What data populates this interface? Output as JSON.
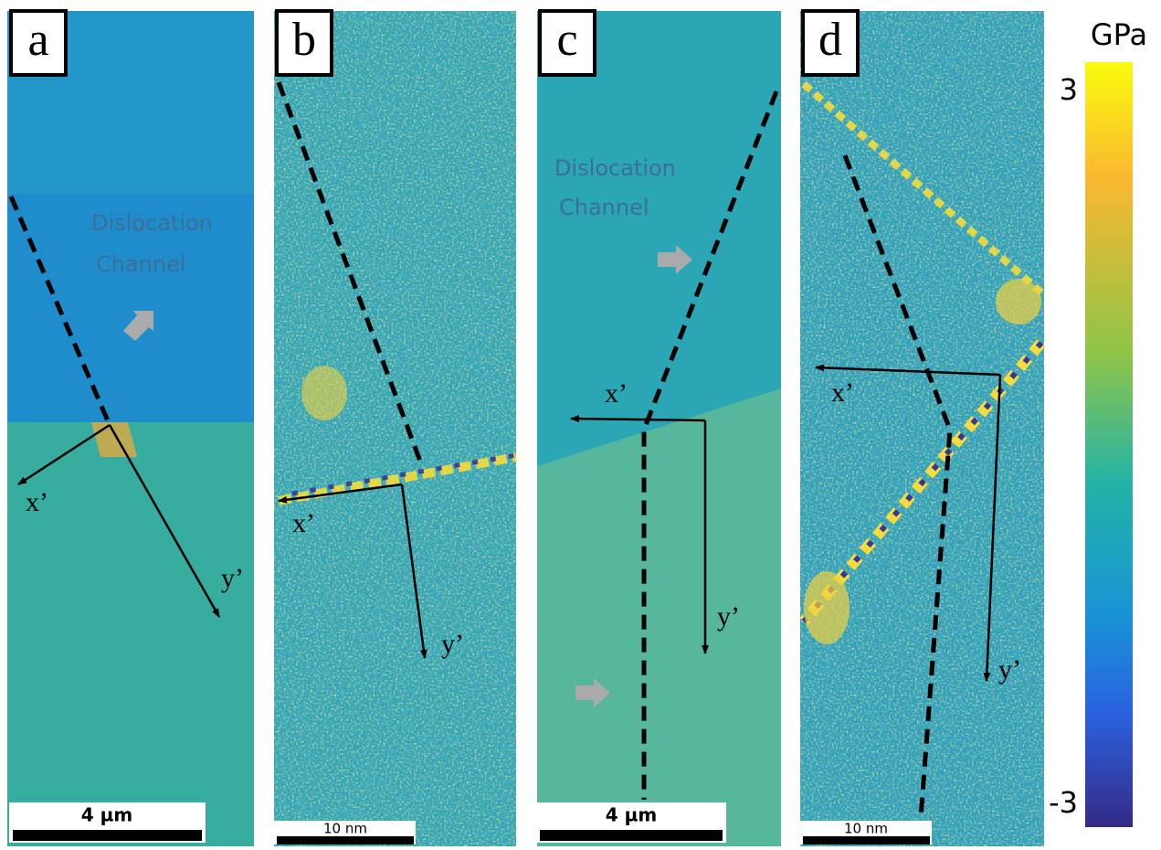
{
  "panels": [
    {
      "label": "a",
      "annotation": [
        "Dislocation",
        "Channel"
      ],
      "axis_x": "x’",
      "axis_y": "y’",
      "scale_bar": "4 µm"
    },
    {
      "label": "b",
      "axis_x": "x’",
      "axis_y": "y’",
      "scale_bar": "10 nm"
    },
    {
      "label": "c",
      "annotation": [
        "Dislocation",
        "Channel"
      ],
      "axis_x": "x’",
      "axis_y": "y’",
      "scale_bar": "4 µm"
    },
    {
      "label": "d",
      "axis_x": "x’",
      "axis_y": "y’",
      "scale_bar": "10 nm"
    }
  ],
  "colorbar": {
    "unit": "GPa",
    "ticks": [
      3,
      -3
    ]
  }
}
